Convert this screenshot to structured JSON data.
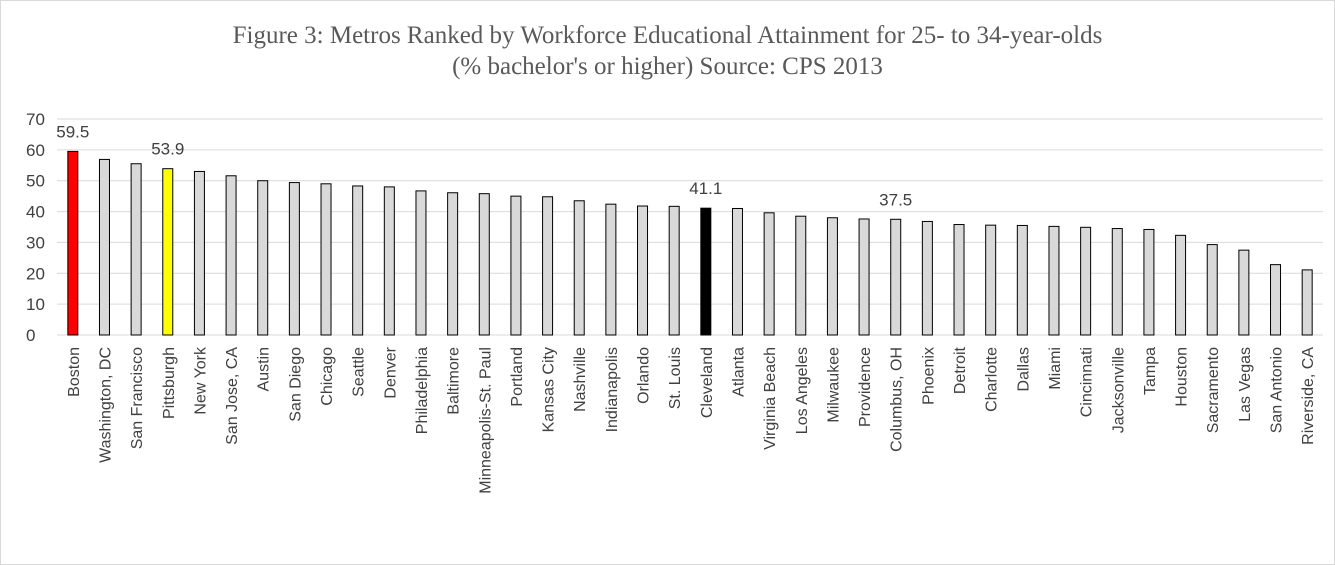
{
  "chart_data": {
    "type": "bar",
    "title_line1": "Figure 3: Metros Ranked by Workforce Educational Attainment for 25- to 34-year-olds",
    "title_line2": "(% bachelor's or higher) Source: CPS 2013",
    "xlabel": "",
    "ylabel": "",
    "ylim": [
      0,
      70
    ],
    "yticks": [
      0,
      10,
      20,
      30,
      40,
      50,
      60,
      70
    ],
    "grid": true,
    "legend": "none",
    "categories": [
      "Boston",
      "Washington, DC",
      "San Francisco",
      "Pittsburgh",
      "New York",
      "San Jose, CA",
      "Austin",
      "San Diego",
      "Chicago",
      "Seattle",
      "Denver",
      "Philadelphia",
      "Baltimore",
      "Minneapolis-St. Paul",
      "Portland",
      "Kansas City",
      "Nashville",
      "Indianapolis",
      "Orlando",
      "St. Louis",
      "Cleveland",
      "Atlanta",
      "Virginia Beach",
      "Los Angeles",
      "Milwaukee",
      "Providence",
      "Columbus, OH",
      "Phoenix",
      "Detroit",
      "Charlotte",
      "Dallas",
      "Miami",
      "Cincinnati",
      "Jacksonville",
      "Tampa",
      "Houston",
      "Sacramento",
      "Las Vegas",
      "San Antonio",
      "Riverside, CA"
    ],
    "values": [
      59.5,
      56.9,
      55.5,
      53.9,
      53.0,
      51.6,
      50.0,
      49.4,
      49.0,
      48.3,
      48.0,
      46.7,
      46.1,
      45.8,
      45.0,
      44.8,
      43.5,
      42.4,
      41.8,
      41.7,
      41.1,
      41.0,
      39.6,
      38.5,
      38.0,
      37.6,
      37.5,
      36.8,
      35.8,
      35.6,
      35.5,
      35.2,
      34.9,
      34.5,
      34.2,
      32.3,
      29.3,
      27.5,
      22.8,
      21.1
    ],
    "colors": {
      "default": "#d9d9d9",
      "Boston": "#ff0000",
      "Pittsburgh": "#ffff00",
      "Cleveland": "#000000",
      "outline": "#000000",
      "grid": "#d9d9d9"
    },
    "data_labels": [
      {
        "category": "Boston",
        "text": "59.5"
      },
      {
        "category": "Pittsburgh",
        "text": "53.9"
      },
      {
        "category": "Cleveland",
        "text": "41.1"
      },
      {
        "category": "Columbus, OH",
        "text": "37.5"
      }
    ]
  }
}
